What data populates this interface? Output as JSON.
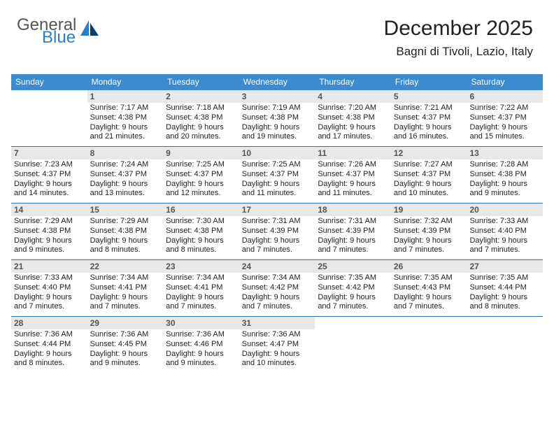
{
  "logo": {
    "textGray": "General",
    "textBlue": "Blue"
  },
  "header": {
    "title": "December 2025",
    "location": "Bagni di Tivoli, Lazio, Italy"
  },
  "colors": {
    "headerBar": "#3b8bce",
    "rowDivider": "#2f73b4",
    "dayNumBg": "#e8e8e8",
    "text": "#222222",
    "logoBlue": "#2a7ec7",
    "logoGray": "#555555",
    "background": "#ffffff"
  },
  "dayLabels": [
    "Sunday",
    "Monday",
    "Tuesday",
    "Wednesday",
    "Thursday",
    "Friday",
    "Saturday"
  ],
  "weeks": [
    [
      null,
      {
        "n": "1",
        "sr": "7:17 AM",
        "ss": "4:38 PM",
        "dl": "9 hours and 21 minutes."
      },
      {
        "n": "2",
        "sr": "7:18 AM",
        "ss": "4:38 PM",
        "dl": "9 hours and 20 minutes."
      },
      {
        "n": "3",
        "sr": "7:19 AM",
        "ss": "4:38 PM",
        "dl": "9 hours and 19 minutes."
      },
      {
        "n": "4",
        "sr": "7:20 AM",
        "ss": "4:38 PM",
        "dl": "9 hours and 17 minutes."
      },
      {
        "n": "5",
        "sr": "7:21 AM",
        "ss": "4:37 PM",
        "dl": "9 hours and 16 minutes."
      },
      {
        "n": "6",
        "sr": "7:22 AM",
        "ss": "4:37 PM",
        "dl": "9 hours and 15 minutes."
      }
    ],
    [
      {
        "n": "7",
        "sr": "7:23 AM",
        "ss": "4:37 PM",
        "dl": "9 hours and 14 minutes."
      },
      {
        "n": "8",
        "sr": "7:24 AM",
        "ss": "4:37 PM",
        "dl": "9 hours and 13 minutes."
      },
      {
        "n": "9",
        "sr": "7:25 AM",
        "ss": "4:37 PM",
        "dl": "9 hours and 12 minutes."
      },
      {
        "n": "10",
        "sr": "7:25 AM",
        "ss": "4:37 PM",
        "dl": "9 hours and 11 minutes."
      },
      {
        "n": "11",
        "sr": "7:26 AM",
        "ss": "4:37 PM",
        "dl": "9 hours and 11 minutes."
      },
      {
        "n": "12",
        "sr": "7:27 AM",
        "ss": "4:37 PM",
        "dl": "9 hours and 10 minutes."
      },
      {
        "n": "13",
        "sr": "7:28 AM",
        "ss": "4:38 PM",
        "dl": "9 hours and 9 minutes."
      }
    ],
    [
      {
        "n": "14",
        "sr": "7:29 AM",
        "ss": "4:38 PM",
        "dl": "9 hours and 9 minutes."
      },
      {
        "n": "15",
        "sr": "7:29 AM",
        "ss": "4:38 PM",
        "dl": "9 hours and 8 minutes."
      },
      {
        "n": "16",
        "sr": "7:30 AM",
        "ss": "4:38 PM",
        "dl": "9 hours and 8 minutes."
      },
      {
        "n": "17",
        "sr": "7:31 AM",
        "ss": "4:39 PM",
        "dl": "9 hours and 7 minutes."
      },
      {
        "n": "18",
        "sr": "7:31 AM",
        "ss": "4:39 PM",
        "dl": "9 hours and 7 minutes."
      },
      {
        "n": "19",
        "sr": "7:32 AM",
        "ss": "4:39 PM",
        "dl": "9 hours and 7 minutes."
      },
      {
        "n": "20",
        "sr": "7:33 AM",
        "ss": "4:40 PM",
        "dl": "9 hours and 7 minutes."
      }
    ],
    [
      {
        "n": "21",
        "sr": "7:33 AM",
        "ss": "4:40 PM",
        "dl": "9 hours and 7 minutes."
      },
      {
        "n": "22",
        "sr": "7:34 AM",
        "ss": "4:41 PM",
        "dl": "9 hours and 7 minutes."
      },
      {
        "n": "23",
        "sr": "7:34 AM",
        "ss": "4:41 PM",
        "dl": "9 hours and 7 minutes."
      },
      {
        "n": "24",
        "sr": "7:34 AM",
        "ss": "4:42 PM",
        "dl": "9 hours and 7 minutes."
      },
      {
        "n": "25",
        "sr": "7:35 AM",
        "ss": "4:42 PM",
        "dl": "9 hours and 7 minutes."
      },
      {
        "n": "26",
        "sr": "7:35 AM",
        "ss": "4:43 PM",
        "dl": "9 hours and 7 minutes."
      },
      {
        "n": "27",
        "sr": "7:35 AM",
        "ss": "4:44 PM",
        "dl": "9 hours and 8 minutes."
      }
    ],
    [
      {
        "n": "28",
        "sr": "7:36 AM",
        "ss": "4:44 PM",
        "dl": "9 hours and 8 minutes."
      },
      {
        "n": "29",
        "sr": "7:36 AM",
        "ss": "4:45 PM",
        "dl": "9 hours and 9 minutes."
      },
      {
        "n": "30",
        "sr": "7:36 AM",
        "ss": "4:46 PM",
        "dl": "9 hours and 9 minutes."
      },
      {
        "n": "31",
        "sr": "7:36 AM",
        "ss": "4:47 PM",
        "dl": "9 hours and 10 minutes."
      },
      null,
      null,
      null
    ]
  ]
}
